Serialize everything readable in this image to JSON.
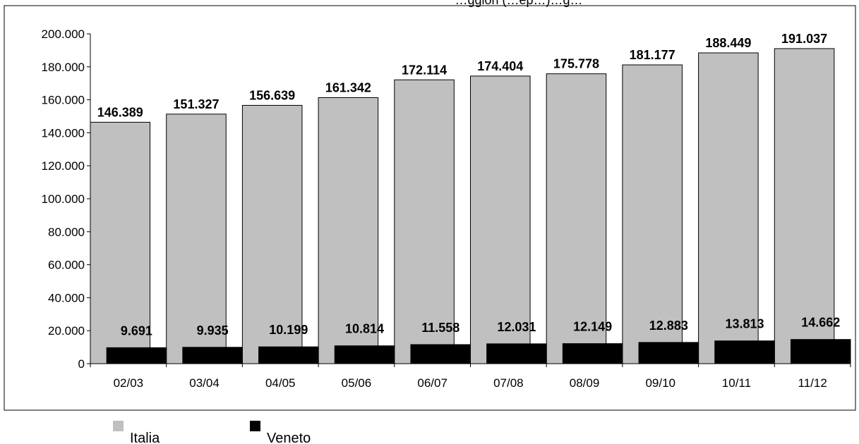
{
  "chart_data": {
    "type": "bar",
    "title": "…ggiori (…ep…)…g…",
    "categories": [
      "02/03",
      "03/04",
      "04/05",
      "05/06",
      "06/07",
      "07/08",
      "08/09",
      "09/10",
      "10/11",
      "11/12"
    ],
    "series": [
      {
        "name": "Italia",
        "color": "#c0c0c0",
        "values": [
          146389,
          151327,
          156639,
          161342,
          172114,
          174404,
          175778,
          181177,
          188449,
          191037
        ],
        "labels": [
          "146.389",
          "151.327",
          "156.639",
          "161.342",
          "172.114",
          "174.404",
          "175.778",
          "181.177",
          "188.449",
          "191.037"
        ]
      },
      {
        "name": "Veneto",
        "color": "#000000",
        "values": [
          9691,
          9935,
          10199,
          10814,
          11558,
          12031,
          12149,
          12883,
          13813,
          14662
        ],
        "labels": [
          "9.691",
          "9.935",
          "10.199",
          "10.814",
          "11.558",
          "12.031",
          "12.149",
          "12.883",
          "13.813",
          "14.662"
        ]
      }
    ],
    "ylim": [
      0,
      200000
    ],
    "yticks": [
      0,
      20000,
      40000,
      60000,
      80000,
      100000,
      120000,
      140000,
      160000,
      180000,
      200000
    ],
    "ytick_labels": [
      "0",
      "20.000",
      "40.000",
      "60.000",
      "80.000",
      "100.000",
      "120.000",
      "140.000",
      "160.000",
      "180.000",
      "200.000"
    ],
    "grid": false,
    "legend_position": "bottom-left"
  }
}
